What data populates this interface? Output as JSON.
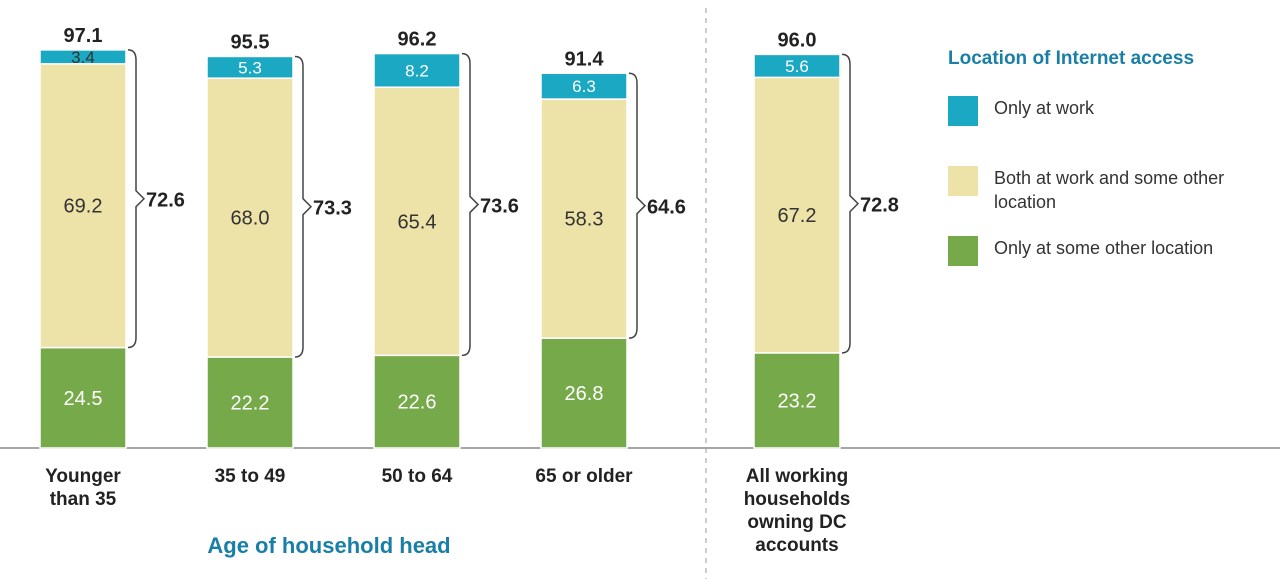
{
  "chart_data": {
    "type": "bar",
    "stacked": true,
    "categories": [
      "Younger than 35",
      "35 to 49",
      "50 to 64",
      "65 or older",
      "All working households owning DC accounts"
    ],
    "series": [
      {
        "name": "Only at some other location",
        "color": "#76a94a",
        "values": [
          24.5,
          22.2,
          22.6,
          26.8,
          23.2
        ]
      },
      {
        "name": "Both at work and some other location",
        "color": "#ede3a8",
        "values": [
          69.2,
          68.0,
          65.4,
          58.3,
          67.2
        ]
      },
      {
        "name": "Only at work",
        "color": "#1ba8c3",
        "values": [
          3.4,
          5.3,
          8.2,
          6.3,
          5.6
        ]
      }
    ],
    "totals": [
      "97.1",
      "95.5",
      "96.2",
      "91.4",
      "96.0"
    ],
    "bracket_totals": [
      "72.6",
      "73.3",
      "73.6",
      "64.6",
      "72.8"
    ],
    "value_labels": {
      "green": [
        "24.5",
        "22.2",
        "22.6",
        "26.8",
        "23.2"
      ],
      "yellow": [
        "69.2",
        "68.0",
        "65.4",
        "58.3",
        "67.2"
      ],
      "blue": [
        "3.4",
        "5.3",
        "8.2",
        "6.3",
        "5.6"
      ]
    },
    "category_label_lines": [
      [
        "Younger",
        "than 35"
      ],
      [
        "35 to 49"
      ],
      [
        "50 to 64"
      ],
      [
        "65 or older"
      ],
      [
        "All working",
        "households",
        "owning DC",
        "accounts"
      ]
    ],
    "xlabel": "Age of household head",
    "ylim": [
      0,
      100
    ],
    "legend_title": "Location of Internet access",
    "legend_position": "right",
    "accent_color": "#1a7fa6"
  },
  "legend": {
    "title": "Location of Internet access",
    "items": [
      {
        "label": "Only at work",
        "color": "#1ba8c3"
      },
      {
        "label": "Both at work and some other location",
        "color": "#ede3a8"
      },
      {
        "label": "Only at some other location",
        "color": "#76a94a"
      }
    ]
  }
}
